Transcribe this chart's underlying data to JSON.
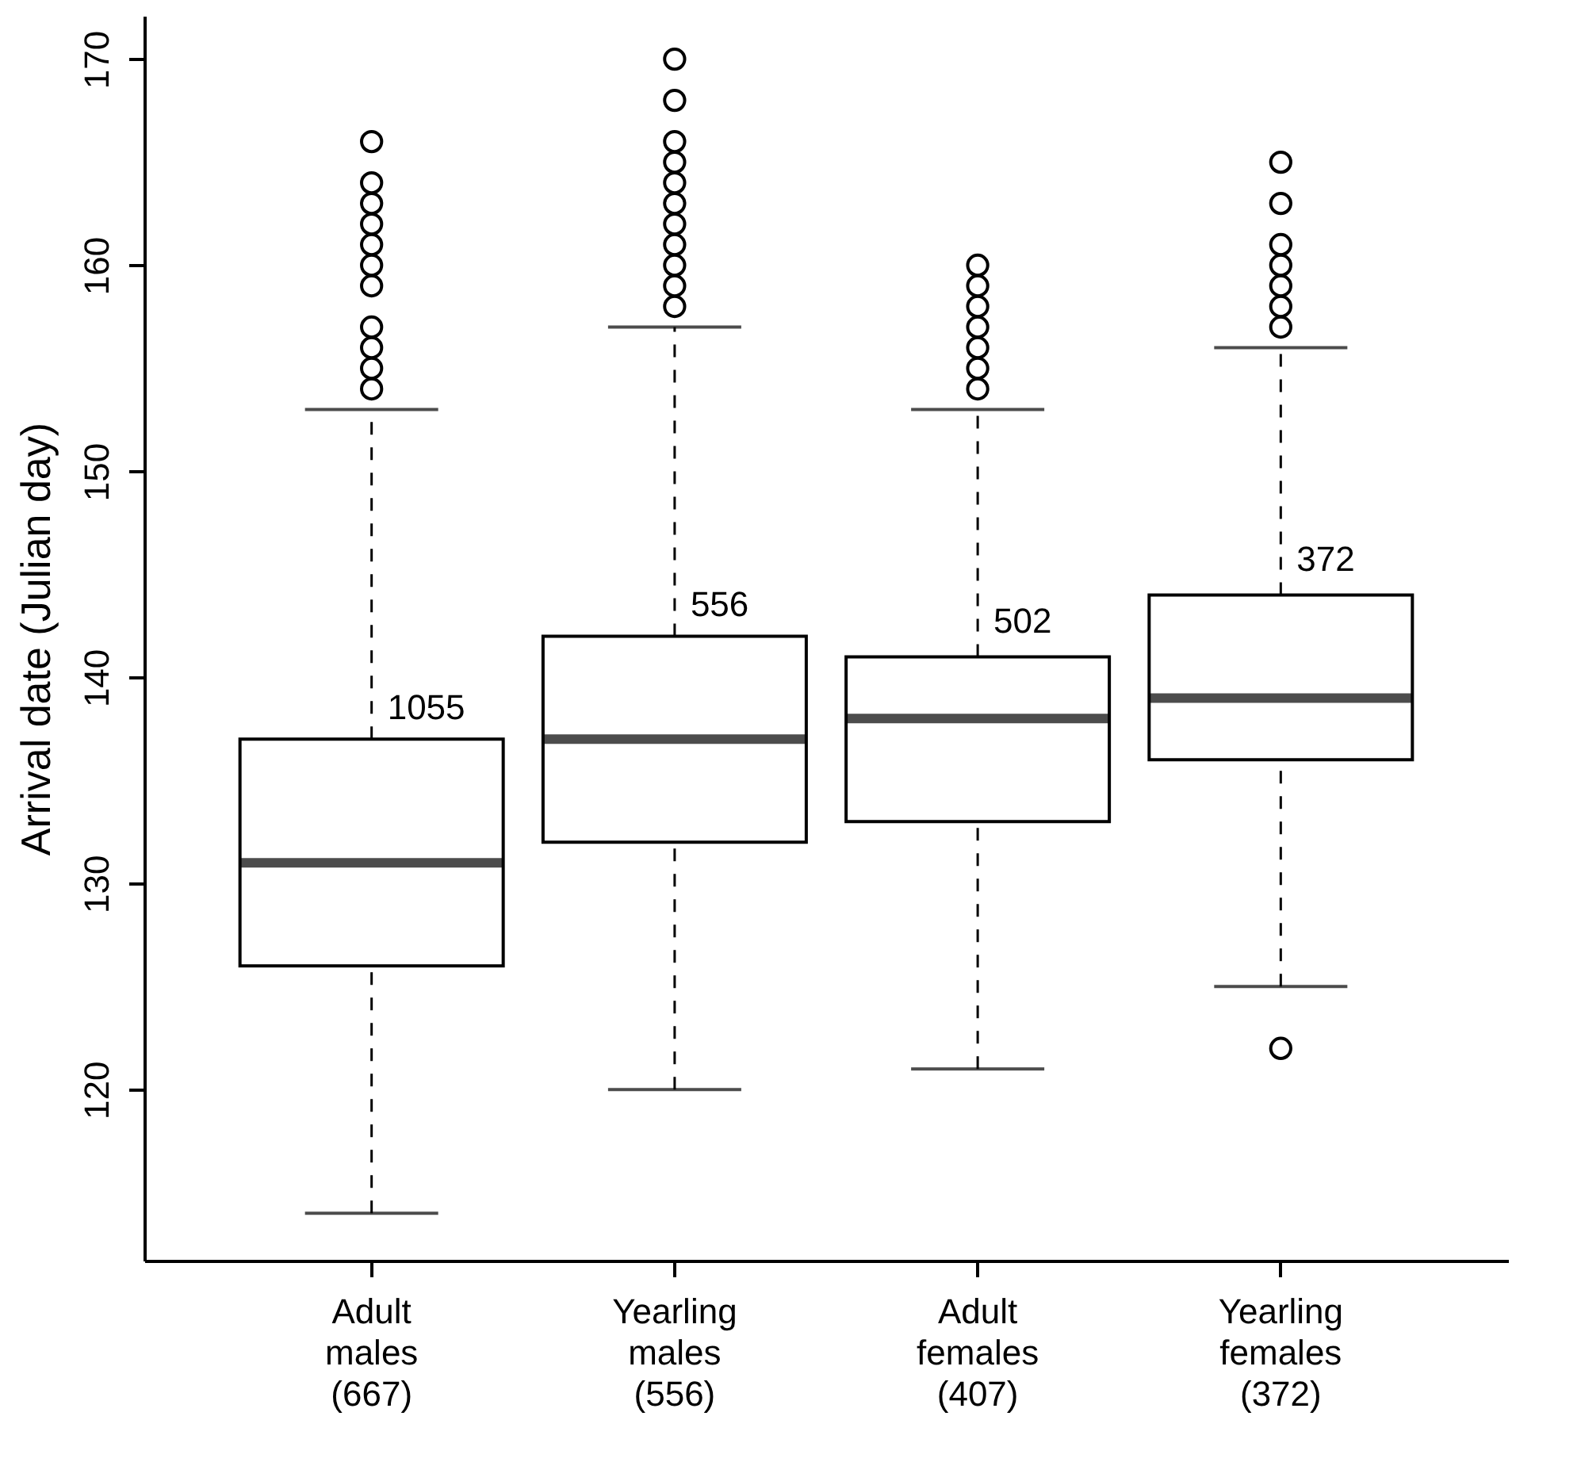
{
  "chart_data": {
    "type": "box",
    "categories": [
      "Adult\nmales\n(667)",
      "Yearling\nmales\n(556)",
      "Adult\nfemales\n(407)",
      "Yearling\nfemales\n(372)"
    ],
    "boxes": [
      {
        "low": 114,
        "q1": 126,
        "median": 131,
        "q3": 137,
        "high": 153,
        "outliers": [
          154,
          155,
          156,
          157,
          159,
          160,
          161,
          162,
          163,
          164,
          166
        ]
      },
      {
        "low": 120,
        "q1": 132,
        "median": 137,
        "q3": 142,
        "high": 157,
        "outliers": [
          158,
          159,
          160,
          161,
          162,
          163,
          164,
          165,
          166,
          168,
          170
        ]
      },
      {
        "low": 121,
        "q1": 133,
        "median": 138,
        "q3": 141,
        "high": 153,
        "outliers": [
          154,
          155,
          156,
          157,
          158,
          159,
          160
        ]
      },
      {
        "low": 125,
        "q1": 136,
        "median": 139,
        "q3": 144,
        "high": 156,
        "outliers": [
          122,
          157,
          158,
          159,
          160,
          161,
          163,
          165
        ]
      }
    ],
    "ylabel": "Arrival date (Julian day)",
    "ylim": [
      111.7,
      172.1
    ],
    "yticks": [
      120,
      130,
      140,
      150,
      160,
      170
    ],
    "annotations": [
      {
        "text": "1055",
        "x": "Adult\nmales\n(667)",
        "y": 138.5
      },
      {
        "text": "556",
        "x": "Yearling\nmales\n(556)",
        "y": 143.5
      },
      {
        "text": "502",
        "x": "Adult\nfemales\n(407)",
        "y": 142.7
      },
      {
        "text": "372",
        "x": "Yearling\nfemales\n(372)",
        "y": 145.7
      }
    ]
  }
}
